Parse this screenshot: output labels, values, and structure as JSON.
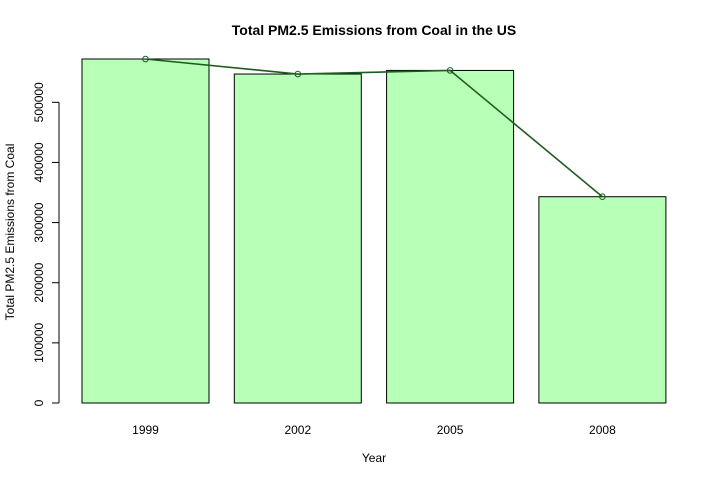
{
  "chart_data": {
    "type": "bar",
    "title": "Total PM2.5 Emissions from Coal in the US",
    "xlabel": "Year",
    "ylabel": "Total PM2.5 Emissions from Coal",
    "categories": [
      "1999",
      "2002",
      "2005",
      "2008"
    ],
    "values": [
      572000,
      547000,
      553000,
      343000
    ],
    "overlay_line": {
      "type": "line",
      "markers": "open-circle",
      "color": "#1f5c1f"
    },
    "yticks": [
      0,
      100000,
      200000,
      300000,
      400000,
      500000
    ],
    "ylim": [
      0,
      572000
    ],
    "bar_color": "#b8ffb8",
    "bar_border": "#000000",
    "grid": false,
    "legend": "none"
  }
}
